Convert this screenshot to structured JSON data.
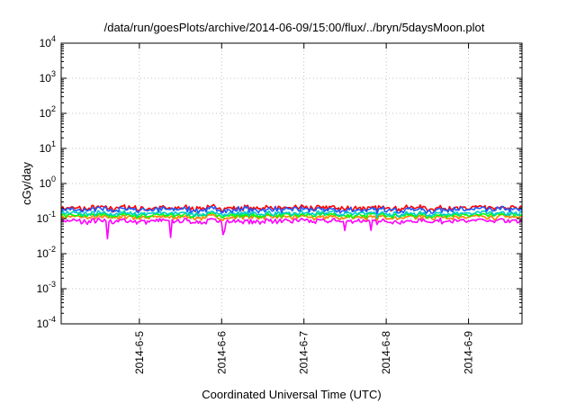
{
  "chart_data": {
    "type": "line",
    "title": "/data/run/goesPlots/archive/2014-06-09/15:00/flux/../bryn/5daysMoon.plot",
    "xlabel": "Coordinated Universal Time (UTC)",
    "ylabel": "cGy/day",
    "yscale": "log",
    "ylim": [
      0.0001,
      10000
    ],
    "xlim": [
      0,
      5.6
    ],
    "y_ticks": [
      {
        "value": 0.0001,
        "base": "10",
        "exp": "-4"
      },
      {
        "value": 0.001,
        "base": "10",
        "exp": "-3"
      },
      {
        "value": 0.01,
        "base": "10",
        "exp": "-2"
      },
      {
        "value": 0.1,
        "base": "10",
        "exp": "-1"
      },
      {
        "value": 1,
        "base": "10",
        "exp": "0"
      },
      {
        "value": 10,
        "base": "10",
        "exp": "1"
      },
      {
        "value": 100,
        "base": "10",
        "exp": "2"
      },
      {
        "value": 1000,
        "base": "10",
        "exp": "3"
      },
      {
        "value": 10000,
        "base": "10",
        "exp": "4"
      }
    ],
    "x_ticks": [
      {
        "value": 0.95,
        "label": "2014-6-5"
      },
      {
        "value": 1.95,
        "label": "2014-6-6"
      },
      {
        "value": 2.95,
        "label": "2014-6-7"
      },
      {
        "value": 3.95,
        "label": "2014-6-8"
      },
      {
        "value": 4.95,
        "label": "2014-6-9"
      }
    ],
    "grid": true,
    "series": [
      {
        "color": "#ff00ff",
        "base": 0.085,
        "amp": 0.15
      },
      {
        "color": "#ff8000",
        "base": 0.11,
        "amp": 0.14
      },
      {
        "color": "#00ff00",
        "base": 0.125,
        "amp": 0.14
      },
      {
        "color": "#00cccc",
        "base": 0.14,
        "amp": 0.15
      },
      {
        "color": "#ff0000",
        "base": 0.2,
        "amp": 0.17
      },
      {
        "color": "#1e5bff",
        "base": 0.18,
        "amp": 0.17
      }
    ]
  }
}
